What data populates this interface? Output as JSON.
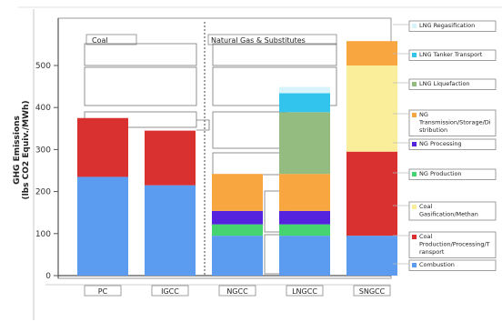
{
  "chart_data": {
    "type": "bar",
    "stacked": true,
    "ylabel_line1": "GHG Emissions",
    "ylabel_line2": "(lbs CO2 Equiv./MWh)",
    "ylim": [
      0,
      600
    ],
    "yticks": [
      0,
      100,
      200,
      300,
      400,
      500
    ],
    "groups": [
      {
        "label": "Coal",
        "categories": [
          "PC",
          "IGCC"
        ]
      },
      {
        "label": "Natural Gas & Substitutes",
        "categories": [
          "NGCC",
          "LNGCC",
          "SNGCC"
        ]
      }
    ],
    "categories": [
      "PC",
      "IGCC",
      "NGCC",
      "LNGCC",
      "SNGCC"
    ],
    "series": [
      {
        "name": "Combustion",
        "color": "#5b9bf0",
        "values": [
          235,
          215,
          95,
          95,
          95
        ]
      },
      {
        "name": "Coal Production/Processing/Transport",
        "color": "#d93030",
        "values": [
          140,
          130,
          0,
          0,
          200
        ]
      },
      {
        "name": "Coal Gasification/Methanation",
        "color": "#fbee9a",
        "values": [
          0,
          0,
          0,
          0,
          205
        ]
      },
      {
        "name": "NG Production",
        "color": "#45d470",
        "values": [
          0,
          0,
          27,
          27,
          0
        ]
      },
      {
        "name": "NG Processing",
        "color": "#5522dd",
        "values": [
          0,
          0,
          32,
          32,
          0
        ]
      },
      {
        "name": "NG Transmission/Storage/Distribution",
        "color": "#f8a640",
        "values": [
          0,
          0,
          88,
          88,
          58
        ]
      },
      {
        "name": "LNG Liquefaction",
        "color": "#94bb80",
        "values": [
          0,
          0,
          0,
          147,
          0
        ]
      },
      {
        "name": "LNG Tanker Transport",
        "color": "#33c4ee",
        "values": [
          0,
          0,
          0,
          45,
          0
        ]
      },
      {
        "name": "LNG Regasification",
        "color": "#d8f4fb",
        "values": [
          0,
          0,
          0,
          15,
          0
        ]
      }
    ],
    "legend_labels": [
      {
        "series": "LNG Regasification",
        "lines": [
          "LNG Regasification"
        ]
      },
      {
        "series": "LNG Tanker Transport",
        "lines": [
          "LNG Tanker Transport"
        ]
      },
      {
        "series": "LNG Liquefaction",
        "lines": [
          "LNG Liquefaction"
        ]
      },
      {
        "series": "NG Transmission/Storage/Distribution",
        "lines": [
          "NG",
          "Transmission/Storage/Di",
          "stribution"
        ]
      },
      {
        "series": "NG Processing",
        "lines": [
          "NG Processing"
        ]
      },
      {
        "series": "NG Production",
        "lines": [
          "NG Production"
        ]
      },
      {
        "series": "Coal Gasification/Methanation",
        "lines": [
          "Coal",
          "Gasification/Methan"
        ]
      },
      {
        "series": "Coal Production/Processing/Transport",
        "lines": [
          "Coal",
          "Production/Processing/T",
          "ransport"
        ]
      },
      {
        "series": "Combustion",
        "lines": [
          "Combustion"
        ]
      }
    ],
    "legend_placement": "right",
    "grid": false
  }
}
